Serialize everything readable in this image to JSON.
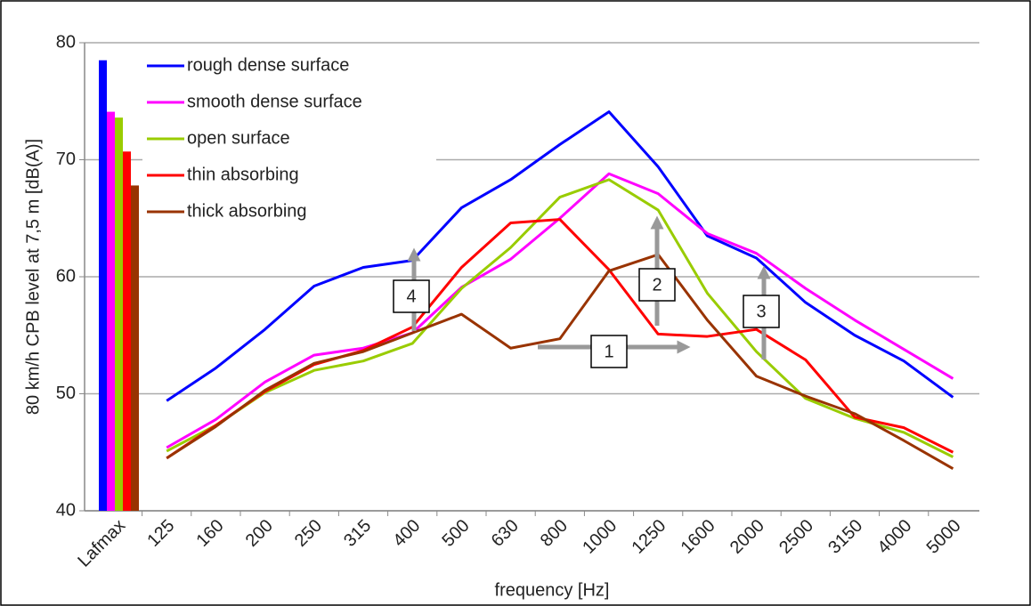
{
  "chart_data": {
    "type": "line",
    "y_label": "80 km/h CPB level at 7,5 m [dB(A)]",
    "x_label": "frequency [Hz]",
    "categories": [
      "Lafmax",
      "125",
      "160",
      "200",
      "250",
      "315",
      "400",
      "500",
      "630",
      "800",
      "1000",
      "1250",
      "1600",
      "2000",
      "2500",
      "3150",
      "4000",
      "5000"
    ],
    "series": [
      {
        "name": "rough dense surface",
        "color": "#0000ff",
        "values": [
          78.5,
          49.4,
          52.2,
          55.5,
          59.2,
          60.8,
          61.4,
          65.9,
          68.3,
          71.3,
          74.1,
          69.4,
          63.5,
          61.6,
          57.8,
          55.0,
          52.8,
          49.7
        ]
      },
      {
        "name": "smooth dense surface",
        "color": "#ff00ff",
        "values": [
          74.1,
          45.4,
          47.8,
          51.0,
          53.3,
          53.9,
          55.2,
          59.1,
          61.5,
          65.0,
          68.8,
          67.1,
          63.7,
          62.0,
          59.0,
          56.3,
          53.8,
          51.3
        ]
      },
      {
        "name": "open surface",
        "color": "#99cc00",
        "values": [
          73.6,
          45.1,
          47.3,
          50.1,
          52.0,
          52.8,
          54.3,
          59.0,
          62.5,
          66.8,
          68.3,
          65.7,
          58.6,
          53.6,
          49.6,
          47.9,
          46.7,
          44.6
        ]
      },
      {
        "name": "thin absorbing",
        "color": "#ff0000",
        "values": [
          70.7,
          44.5,
          47.3,
          50.2,
          52.5,
          53.7,
          55.7,
          60.8,
          64.6,
          64.9,
          60.6,
          55.1,
          54.9,
          55.5,
          52.9,
          48.0,
          47.1,
          45.0
        ]
      },
      {
        "name": "thick absorbing",
        "color": "#993300",
        "values": [
          67.8,
          44.5,
          47.2,
          50.3,
          52.6,
          53.6,
          55.2,
          56.8,
          53.9,
          54.7,
          60.5,
          61.9,
          56.3,
          51.5,
          49.8,
          48.3,
          46.0,
          43.6
        ]
      }
    ],
    "annotations": [
      "1",
      "2",
      "3",
      "4"
    ],
    "ylim": [
      40,
      80
    ],
    "yticks": [
      40,
      50,
      60,
      70,
      80
    ],
    "grid": true
  }
}
